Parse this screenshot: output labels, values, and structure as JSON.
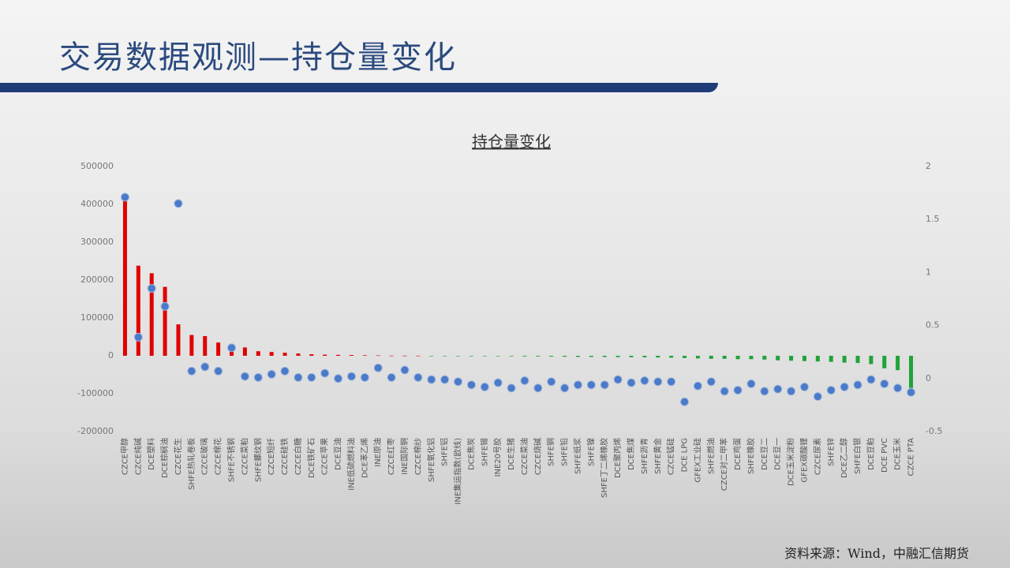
{
  "header": {
    "title": "交易数据观测—持仓量变化"
  },
  "chart_data": {
    "type": "bar",
    "title": "持仓量变化",
    "categories": [
      "CZCE甲醇",
      "CZCE纯碱",
      "DCE塑料",
      "DCE棕榈油",
      "CZCE花生",
      "SHFE热轧卷板",
      "CZCE玻璃",
      "CZCE棉花",
      "SHFE不锈钢",
      "CZCE菜粕",
      "SHFE螺纹钢",
      "CZCE短纤",
      "CZCE硅铁",
      "CZCE白糖",
      "DCE铁矿石",
      "CZCE苹果",
      "DCE豆油",
      "INE低硫燃料油",
      "DCE苯乙烯",
      "INE原油",
      "CZCE红枣",
      "INE国际铜",
      "CZCE棉纱",
      "SHFE氧化铝",
      "SHFE铝",
      "INE集运指数(欧线)",
      "DCE焦炭",
      "SHFE锡",
      "INE20号胶",
      "DCE生猪",
      "CZCE菜油",
      "CZCE烧碱",
      "SHFE铜",
      "SHFE铅",
      "SHFE纸浆",
      "SHFE镍",
      "SHFE丁二烯橡胶",
      "DCE聚丙烯",
      "DCE焦煤",
      "SHFE沥青",
      "SHFE黄金",
      "CZCE锰硅",
      "DCE LPG",
      "GFEX工业硅",
      "SHFE燃油",
      "CZCE对二甲苯",
      "DCE鸡蛋",
      "SHFE橡胶",
      "DCE豆二",
      "DCE豆一",
      "DCE玉米淀粉",
      "GFEX碳酸锂",
      "CZCE尿素",
      "SHFE锌",
      "DCE乙二醇",
      "SHFE白银",
      "DCE豆粕",
      "DCE PVC",
      "DCE玉米",
      "CZCE PTA"
    ],
    "series": [
      {
        "type": "bar",
        "color": "#e00000",
        "negative_color": "#1fa33a",
        "values": [
          425000,
          238000,
          218000,
          182000,
          83000,
          55000,
          52000,
          35000,
          27000,
          22000,
          12000,
          10000,
          8000,
          6000,
          4000,
          3000,
          2500,
          2000,
          1500,
          1000,
          500,
          300,
          200,
          -200,
          -300,
          -500,
          -800,
          -1000,
          -1200,
          -1500,
          -1800,
          -2000,
          -2200,
          -2500,
          -2800,
          -3000,
          -3200,
          -3500,
          -3800,
          -4000,
          -4500,
          -5000,
          -6000,
          -7000,
          -8000,
          -8000,
          -9000,
          -9000,
          -10000,
          -12000,
          -13000,
          -14000,
          -15000,
          -16000,
          -18000,
          -19000,
          -22000,
          -33000,
          -38000,
          -85000
        ]
      },
      {
        "type": "scatter",
        "axis": "y2",
        "color": "#4a7ac8",
        "values": [
          1.71,
          0.39,
          0.85,
          0.68,
          1.65,
          0.07,
          0.11,
          0.07,
          0.29,
          0.02,
          0.01,
          0.04,
          0.07,
          0.01,
          0.01,
          0.05,
          0,
          0.02,
          0.01,
          0.1,
          0.01,
          0.08,
          0.01,
          -0.01,
          -0.01,
          -0.03,
          -0.06,
          -0.08,
          -0.04,
          -0.09,
          -0.02,
          -0.09,
          -0.03,
          -0.09,
          -0.06,
          -0.06,
          -0.06,
          -0.01,
          -0.04,
          -0.02,
          -0.03,
          -0.03,
          -0.22,
          -0.07,
          -0.03,
          -0.12,
          -0.11,
          -0.05,
          -0.12,
          -0.1,
          -0.12,
          -0.08,
          -0.17,
          -0.11,
          -0.08,
          -0.06,
          -0.01,
          -0.05,
          -0.09,
          -0.13
        ]
      }
    ],
    "ylim": [
      -200000,
      500000
    ],
    "yticks": [
      -200000,
      -100000,
      0,
      100000,
      200000,
      300000,
      400000,
      500000
    ],
    "y2lim": [
      -0.5,
      2
    ],
    "y2ticks": [
      -0.5,
      0,
      0.5,
      1,
      1.5,
      2
    ]
  },
  "footer": {
    "source": "资料来源：Wind，中融汇信期货"
  }
}
